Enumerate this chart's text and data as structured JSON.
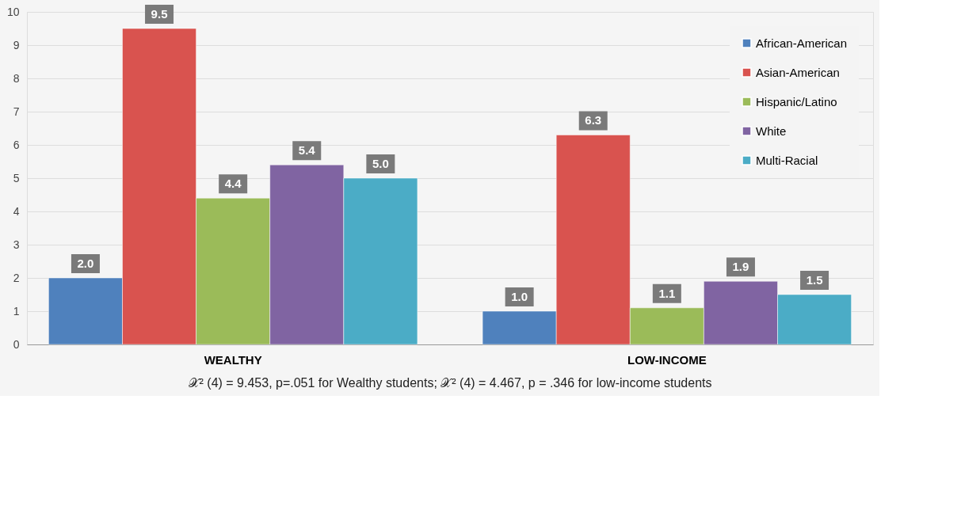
{
  "chart_data": {
    "type": "bar",
    "categories": [
      "WEALTHY",
      "LOW-INCOME"
    ],
    "series": [
      {
        "name": "African-American",
        "color": "#4f81bd",
        "values": [
          2.0,
          1.0
        ],
        "value_labels": [
          "2.0",
          "1.0"
        ]
      },
      {
        "name": "Asian-American",
        "color": "#d9534f",
        "values": [
          9.5,
          6.3
        ],
        "value_labels": [
          "9.5",
          "6.3"
        ]
      },
      {
        "name": "Hispanic/Latino",
        "color": "#9bbb59",
        "values": [
          4.4,
          1.1
        ],
        "value_labels": [
          "4.4",
          "1.1"
        ]
      },
      {
        "name": "White",
        "color": "#8064a2",
        "values": [
          5.4,
          1.9
        ],
        "value_labels": [
          "5.4",
          "1.9"
        ]
      },
      {
        "name": "Multi-Racial",
        "color": "#4bacc6",
        "values": [
          5.0,
          1.5
        ],
        "value_labels": [
          "5.0",
          "1.5"
        ]
      }
    ],
    "ylim": [
      0,
      10
    ],
    "yticks": [
      0,
      1,
      2,
      3,
      4,
      5,
      6,
      7,
      8,
      9,
      10
    ],
    "grid": "y",
    "legend": "top right",
    "annotations": [
      "𝒳² (4) = 9.453, p=.051 for Wealthy students; 𝒳² (4) = 4.467, p = .346 for low-income students"
    ]
  }
}
